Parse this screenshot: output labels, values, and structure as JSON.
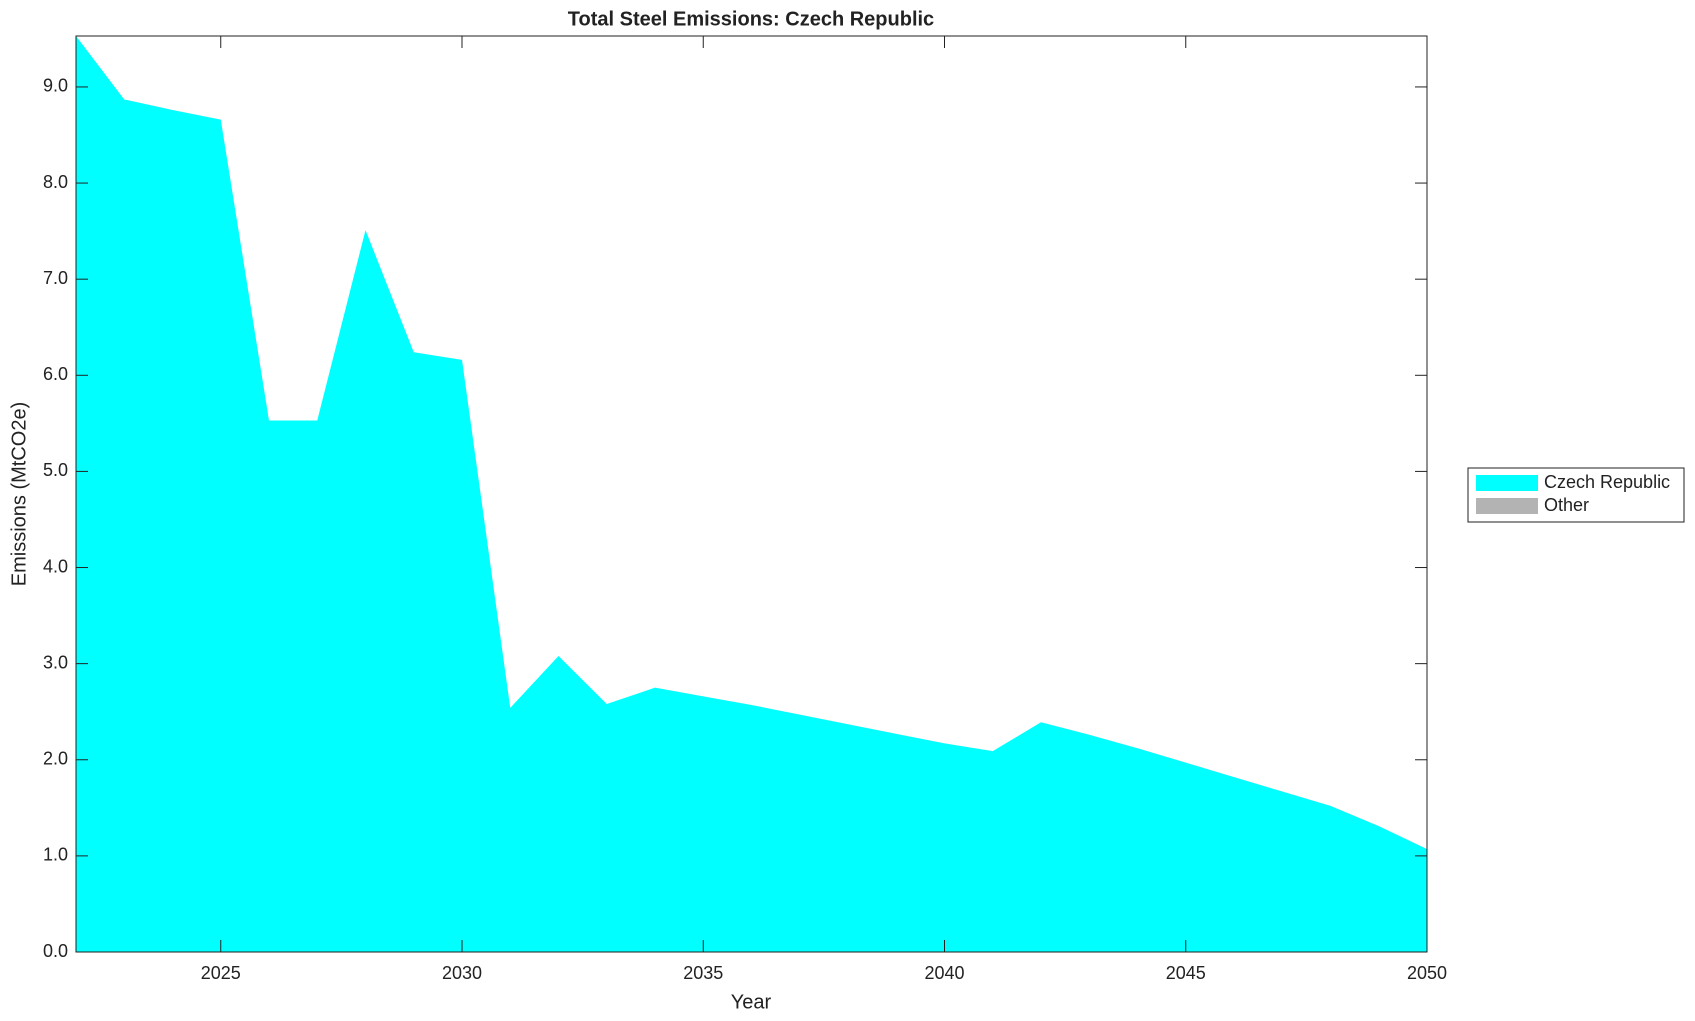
{
  "chart_data": {
    "type": "area",
    "stacked": true,
    "title": "Total Steel Emissions: Czech Republic",
    "x_label": "Year",
    "y_label": "Emissions (MtCO2e)",
    "x": [
      2022,
      2023,
      2024,
      2025,
      2026,
      2027,
      2028,
      2029,
      2030,
      2031,
      2032,
      2033,
      2034,
      2035,
      2036,
      2037,
      2038,
      2039,
      2040,
      2041,
      2042,
      2043,
      2044,
      2045,
      2046,
      2047,
      2048,
      2049,
      2050
    ],
    "series": [
      {
        "name": "Czech Republic",
        "color": "#00ffff",
        "values": [
          9.53,
          8.87,
          8.76,
          8.66,
          5.53,
          5.53,
          7.51,
          6.24,
          6.16,
          2.54,
          3.08,
          2.58,
          2.75,
          2.66,
          2.57,
          2.47,
          2.37,
          2.27,
          2.17,
          2.09,
          2.39,
          2.26,
          2.12,
          1.97,
          1.82,
          1.67,
          1.52,
          1.31,
          1.07
        ]
      },
      {
        "name": "Other",
        "color": "#b3b3b3",
        "values": [
          0,
          0,
          0,
          0,
          0,
          0,
          0,
          0,
          0,
          0,
          0,
          0,
          0,
          0,
          0,
          0,
          0,
          0,
          0,
          0,
          0,
          0,
          0,
          0,
          0,
          0,
          0,
          0,
          0
        ]
      }
    ],
    "xlim": [
      2022,
      2050
    ],
    "xticks": [
      2025,
      2030,
      2035,
      2040,
      2045,
      2050
    ],
    "ylim": [
      0,
      9.53
    ],
    "yticks": [
      {
        "value": 0,
        "label": "0.0"
      },
      {
        "value": 1,
        "label": "1.0"
      },
      {
        "value": 2,
        "label": "2.0"
      },
      {
        "value": 3,
        "label": "3.0"
      },
      {
        "value": 4,
        "label": "4.0"
      },
      {
        "value": 5,
        "label": "5.0"
      },
      {
        "value": 6,
        "label": "6.0"
      },
      {
        "value": 7,
        "label": "7.0"
      },
      {
        "value": 8,
        "label": "8.0"
      },
      {
        "value": 9,
        "label": "9.0"
      }
    ],
    "legend_position": "outside-right",
    "grid": false
  }
}
